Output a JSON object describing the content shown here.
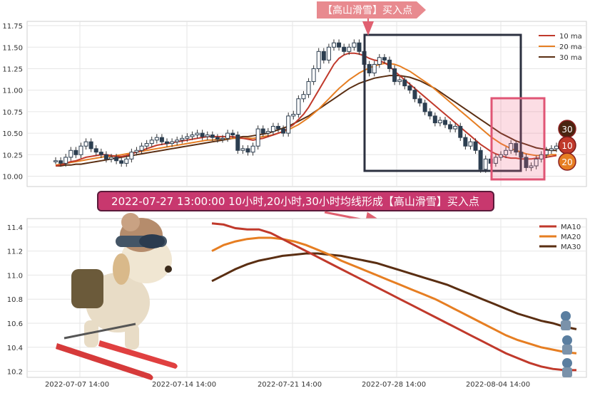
{
  "chart_data": [
    {
      "type": "candlestick",
      "y_ticks": [
        "10.00",
        "10.25",
        "10.50",
        "10.75",
        "11.00",
        "11.25",
        "11.50",
        "11.75"
      ],
      "ylim": [
        9.88,
        11.8
      ],
      "grid": true,
      "legend_position": "top-right",
      "legend": [
        {
          "name": "10 ma",
          "color": "#c0392b"
        },
        {
          "name": "20 ma",
          "color": "#e67e22"
        },
        {
          "name": "30 ma",
          "color": "#5a2e12"
        }
      ],
      "top_banner": "【高山滑雪】买入点",
      "ma_badges": [
        {
          "text": "30",
          "color": "#4a2410"
        },
        {
          "text": "10",
          "color": "#c0392b"
        },
        {
          "text": "20",
          "color": "#e67e22"
        }
      ],
      "candles_close": [
        10.18,
        10.15,
        10.22,
        10.3,
        10.25,
        10.35,
        10.4,
        10.32,
        10.28,
        10.25,
        10.2,
        10.22,
        10.18,
        10.15,
        10.2,
        10.28,
        10.3,
        10.35,
        10.38,
        10.42,
        10.45,
        10.4,
        10.38,
        10.4,
        10.42,
        10.44,
        10.46,
        10.48,
        10.5,
        10.46,
        10.48,
        10.45,
        10.43,
        10.44,
        10.5,
        10.48,
        10.3,
        10.32,
        10.28,
        10.35,
        10.55,
        10.5,
        10.52,
        10.58,
        10.55,
        10.5,
        10.7,
        10.72,
        10.9,
        10.95,
        11.1,
        11.25,
        11.45,
        11.35,
        11.5,
        11.55,
        11.5,
        11.45,
        11.5,
        11.55,
        11.45,
        11.3,
        11.2,
        11.3,
        11.38,
        11.35,
        11.25,
        11.1,
        11.12,
        11.05,
        11.0,
        10.9,
        10.85,
        10.75,
        10.7,
        10.62,
        10.65,
        10.6,
        10.55,
        10.58,
        10.45,
        10.35,
        10.4,
        10.3,
        10.08,
        10.2,
        10.15,
        10.22,
        10.25,
        10.3,
        10.38,
        10.28,
        10.22,
        10.1,
        10.12,
        10.2,
        10.25,
        10.3,
        10.32,
        10.35
      ],
      "ma10": [
        10.12,
        10.13,
        10.15,
        10.17,
        10.18,
        10.2,
        10.22,
        10.23,
        10.24,
        10.25,
        10.25,
        10.24,
        10.23,
        10.23,
        10.24,
        10.26,
        10.28,
        10.3,
        10.32,
        10.34,
        10.36,
        10.37,
        10.38,
        10.39,
        10.4,
        10.41,
        10.42,
        10.43,
        10.44,
        10.45,
        10.46,
        10.46,
        10.46,
        10.46,
        10.46,
        10.46,
        10.45,
        10.44,
        10.43,
        10.42,
        10.43,
        10.44,
        10.46,
        10.48,
        10.5,
        10.52,
        10.56,
        10.6,
        10.66,
        10.72,
        10.8,
        10.9,
        11.0,
        11.1,
        11.2,
        11.3,
        11.37,
        11.41,
        11.43,
        11.43,
        11.42,
        11.4,
        11.37,
        11.35,
        11.34,
        11.32,
        11.28,
        11.22,
        11.17,
        11.12,
        11.07,
        11.02,
        10.97,
        10.92,
        10.87,
        10.82,
        10.77,
        10.72,
        10.67,
        10.62,
        10.57,
        10.52,
        10.47,
        10.42,
        10.37,
        10.33,
        10.29,
        10.26,
        10.24,
        10.22,
        10.21,
        10.21,
        10.2,
        10.2,
        10.2,
        10.21,
        10.21,
        10.22,
        10.23,
        10.24
      ],
      "ma20": [
        10.13,
        10.14,
        10.15,
        10.16,
        10.17,
        10.18,
        10.19,
        10.2,
        10.21,
        10.22,
        10.23,
        10.23,
        10.24,
        10.25,
        10.26,
        10.27,
        10.28,
        10.29,
        10.3,
        10.31,
        10.32,
        10.33,
        10.34,
        10.35,
        10.36,
        10.37,
        10.38,
        10.39,
        10.4,
        10.41,
        10.42,
        10.42,
        10.43,
        10.43,
        10.44,
        10.44,
        10.44,
        10.44,
        10.44,
        10.44,
        10.45,
        10.46,
        10.47,
        10.48,
        10.5,
        10.52,
        10.54,
        10.57,
        10.6,
        10.64,
        10.68,
        10.73,
        10.78,
        10.84,
        10.9,
        10.96,
        11.02,
        11.07,
        11.12,
        11.16,
        11.2,
        11.23,
        11.26,
        11.28,
        11.3,
        11.31,
        11.31,
        11.3,
        11.28,
        11.25,
        11.22,
        11.18,
        11.14,
        11.1,
        11.06,
        11.01,
        10.96,
        10.91,
        10.86,
        10.81,
        10.76,
        10.71,
        10.66,
        10.61,
        10.56,
        10.51,
        10.46,
        10.42,
        10.38,
        10.35,
        10.32,
        10.3,
        10.28,
        10.26,
        10.25,
        10.24,
        10.24,
        10.24,
        10.25,
        10.25
      ],
      "ma30": [
        10.12,
        10.12,
        10.13,
        10.13,
        10.14,
        10.14,
        10.15,
        10.16,
        10.17,
        10.18,
        10.19,
        10.2,
        10.21,
        10.22,
        10.23,
        10.24,
        10.25,
        10.26,
        10.27,
        10.28,
        10.29,
        10.3,
        10.31,
        10.32,
        10.33,
        10.34,
        10.35,
        10.36,
        10.37,
        10.38,
        10.39,
        10.4,
        10.41,
        10.42,
        10.43,
        10.44,
        10.45,
        10.46,
        10.46,
        10.47,
        10.48,
        10.49,
        10.5,
        10.52,
        10.54,
        10.56,
        10.58,
        10.61,
        10.64,
        10.67,
        10.7,
        10.74,
        10.78,
        10.82,
        10.86,
        10.9,
        10.94,
        10.98,
        11.02,
        11.05,
        11.08,
        11.1,
        11.12,
        11.14,
        11.15,
        11.16,
        11.17,
        11.17,
        11.17,
        11.16,
        11.15,
        11.13,
        11.11,
        11.08,
        11.05,
        11.02,
        10.98,
        10.94,
        10.9,
        10.86,
        10.82,
        10.78,
        10.74,
        10.7,
        10.66,
        10.62,
        10.58,
        10.54,
        10.5,
        10.47,
        10.44,
        10.41,
        10.39,
        10.37,
        10.35,
        10.33,
        10.32,
        10.31,
        10.3,
        10.3
      ]
    },
    {
      "type": "line",
      "title": "2022-07-27 13:00:00 10小时,20小时,30小时均线形成【高山滑雪】买入点",
      "x_ticks": [
        "2022-07-07 14:00",
        "2022-07-14 14:00",
        "2022-07-21 14:00",
        "2022-07-28 14:00",
        "2022-08-04 14:00"
      ],
      "y_ticks": [
        "10.2",
        "10.4",
        "10.6",
        "10.8",
        "11.0",
        "11.2",
        "11.4"
      ],
      "ylim": [
        10.15,
        11.47
      ],
      "grid": true,
      "legend_position": "top-right",
      "series": [
        {
          "name": "MA10",
          "color": "#c0392b",
          "values": [
            11.43,
            11.42,
            11.39,
            11.38,
            11.38,
            11.35,
            11.3,
            11.25,
            11.2,
            11.15,
            11.1,
            11.05,
            11.0,
            10.95,
            10.9,
            10.85,
            10.8,
            10.75,
            10.7,
            10.65,
            10.6,
            10.55,
            10.5,
            10.45,
            10.4,
            10.35,
            10.31,
            10.27,
            10.24,
            10.22,
            10.21,
            10.21
          ]
        },
        {
          "name": "MA20",
          "color": "#e67e22",
          "values": [
            11.2,
            11.25,
            11.28,
            11.3,
            11.31,
            11.31,
            11.3,
            11.28,
            11.25,
            11.21,
            11.17,
            11.12,
            11.08,
            11.04,
            11.0,
            10.96,
            10.92,
            10.88,
            10.84,
            10.8,
            10.75,
            10.7,
            10.65,
            10.6,
            10.55,
            10.5,
            10.46,
            10.43,
            10.4,
            10.38,
            10.36,
            10.35
          ]
        },
        {
          "name": "MA30",
          "color": "#5a2e12",
          "values": [
            10.95,
            11.0,
            11.05,
            11.09,
            11.12,
            11.14,
            11.16,
            11.17,
            11.18,
            11.18,
            11.17,
            11.16,
            11.14,
            11.12,
            11.1,
            11.07,
            11.04,
            11.01,
            10.98,
            10.95,
            10.92,
            10.88,
            10.84,
            10.8,
            10.76,
            10.72,
            10.68,
            10.65,
            10.62,
            10.6,
            10.57,
            10.55
          ]
        }
      ]
    }
  ]
}
